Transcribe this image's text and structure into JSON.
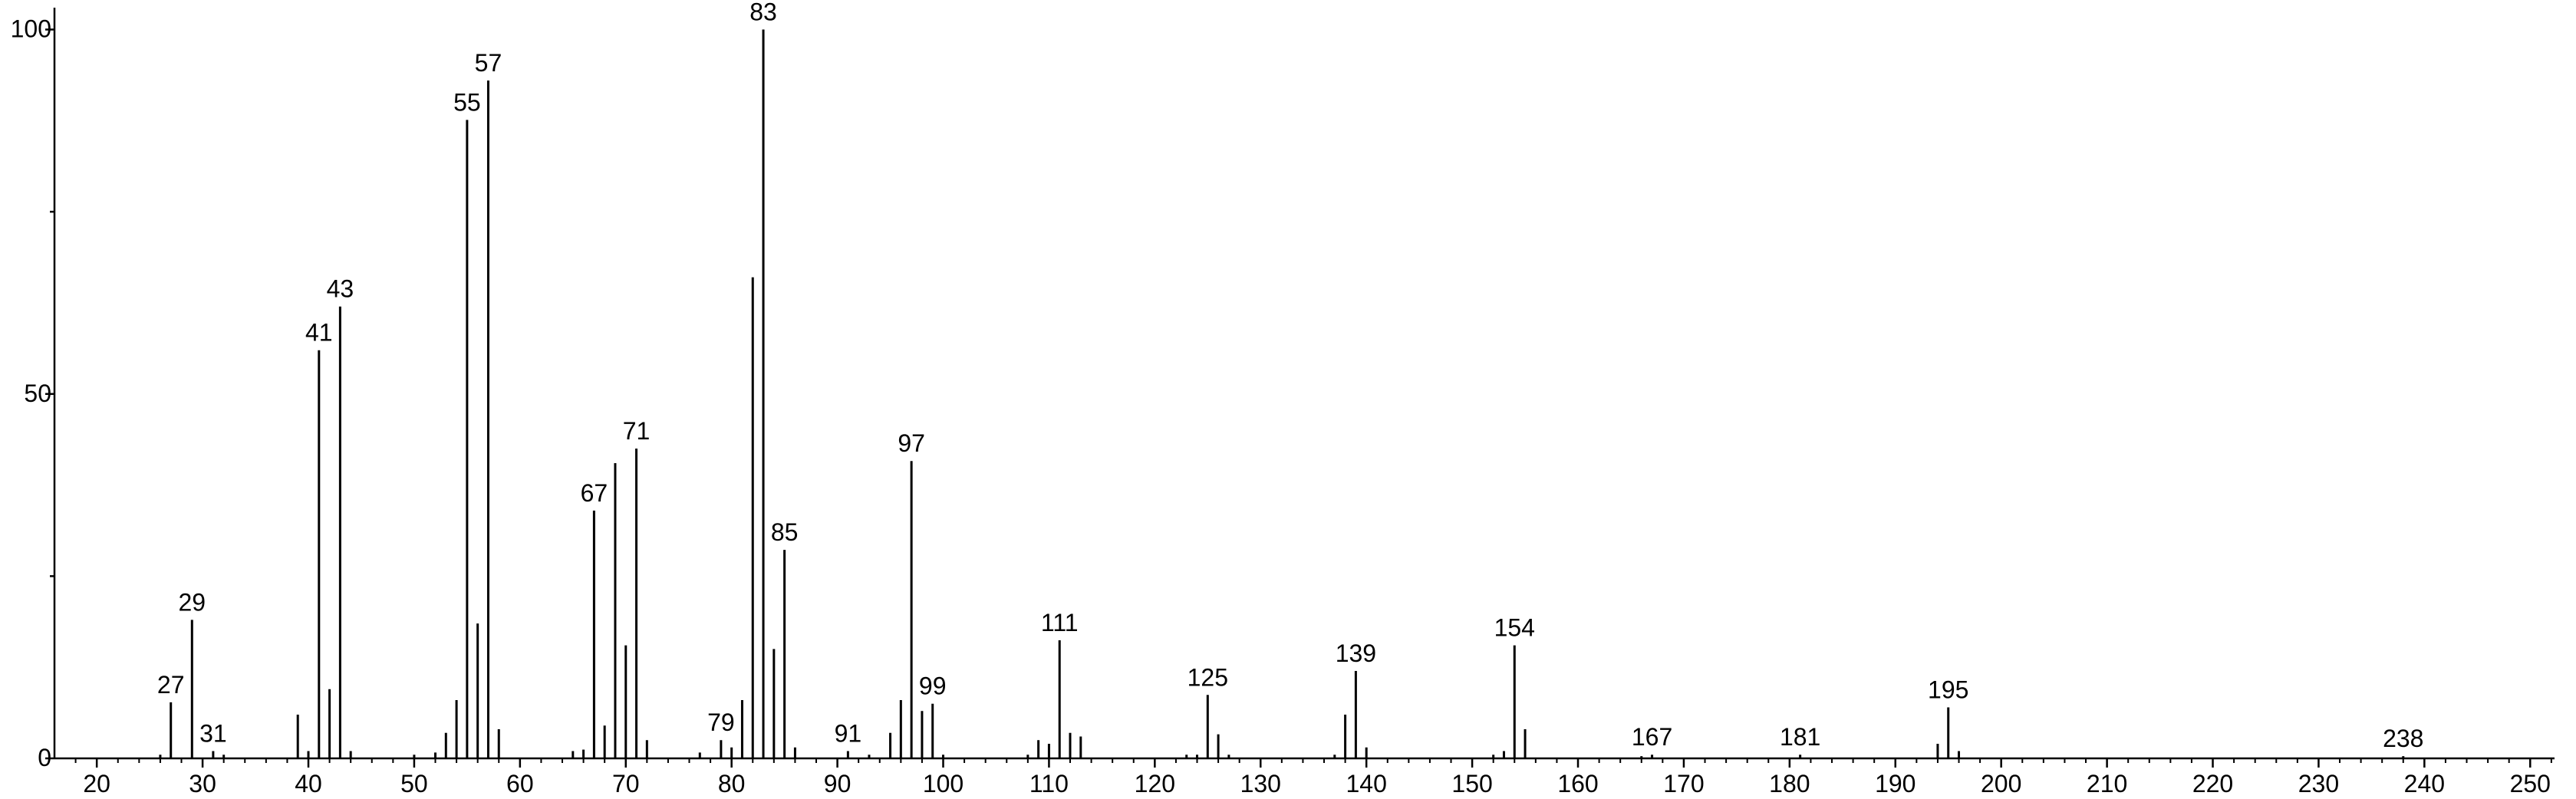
{
  "chart_data": {
    "type": "stick",
    "x": [
      26,
      27,
      29,
      31,
      32,
      39,
      40,
      41,
      42,
      43,
      44,
      50,
      52,
      53,
      54,
      55,
      56,
      57,
      58,
      65,
      66,
      67,
      68,
      69,
      70,
      71,
      72,
      77,
      79,
      80,
      81,
      82,
      83,
      84,
      85,
      86,
      91,
      93,
      95,
      96,
      97,
      98,
      99,
      100,
      108,
      109,
      110,
      111,
      112,
      113,
      123,
      124,
      125,
      126,
      127,
      137,
      138,
      139,
      140,
      152,
      153,
      154,
      155,
      166,
      167,
      181,
      194,
      195,
      196,
      238
    ],
    "values": [
      0.5,
      7.7,
      19,
      1,
      0.5,
      6,
      1,
      56,
      9.5,
      62,
      1,
      0.5,
      0.8,
      3.5,
      8,
      87.6,
      18.5,
      93,
      4,
      1,
      1.2,
      34,
      4.5,
      40.5,
      15.5,
      42.5,
      2.5,
      0.8,
      2.5,
      1.5,
      8,
      66,
      100,
      15,
      28.6,
      1.5,
      1,
      0.5,
      3.5,
      8,
      40.8,
      6.5,
      7.5,
      0.5,
      0.5,
      2.5,
      2,
      16.2,
      3.5,
      3,
      0.5,
      0.5,
      8.7,
      3.3,
      0.5,
      0.5,
      6,
      12,
      1.5,
      0.5,
      1,
      15.5,
      4,
      0.3,
      0.5,
      0.5,
      2,
      7,
      1,
      0.3
    ],
    "labels": [
      null,
      "27",
      "29",
      "31",
      null,
      null,
      null,
      "41",
      null,
      "43",
      null,
      null,
      null,
      null,
      null,
      "55",
      null,
      "57",
      null,
      null,
      null,
      "67",
      null,
      null,
      null,
      "71",
      null,
      null,
      "79",
      null,
      null,
      null,
      "83",
      null,
      "85",
      null,
      "91",
      null,
      null,
      null,
      "97",
      null,
      "99",
      null,
      null,
      null,
      null,
      "111",
      null,
      null,
      null,
      null,
      "125",
      null,
      null,
      null,
      null,
      "139",
      null,
      null,
      null,
      "154",
      null,
      null,
      "167",
      "181",
      null,
      "195",
      null,
      "238"
    ],
    "color": "#000000",
    "xlim": [
      16,
      252.3
    ],
    "ylim": [
      0,
      103
    ],
    "xticks": [
      20,
      30,
      40,
      50,
      60,
      70,
      80,
      90,
      100,
      110,
      120,
      130,
      140,
      150,
      160,
      170,
      180,
      190,
      200,
      210,
      220,
      230,
      240,
      250
    ],
    "xminorticks": [
      18,
      22,
      24,
      26,
      28,
      32,
      34,
      36,
      38,
      42,
      44,
      46,
      48,
      52,
      54,
      56,
      58,
      62,
      64,
      66,
      68,
      72,
      74,
      76,
      78,
      82,
      84,
      86,
      88,
      92,
      94,
      96,
      98,
      102,
      104,
      106,
      108,
      112,
      114,
      116,
      118,
      122,
      124,
      126,
      128,
      132,
      134,
      136,
      138,
      142,
      144,
      146,
      148,
      152,
      154,
      156,
      158,
      162,
      164,
      166,
      168,
      172,
      174,
      176,
      178,
      182,
      184,
      186,
      188,
      192,
      194,
      196,
      198,
      202,
      204,
      206,
      208,
      212,
      214,
      216,
      218,
      222,
      224,
      226,
      228,
      232,
      234,
      236,
      238,
      242,
      244,
      246,
      248,
      252
    ],
    "yticks": [
      0,
      50,
      100
    ],
    "yminorticks": [
      25,
      75
    ]
  }
}
